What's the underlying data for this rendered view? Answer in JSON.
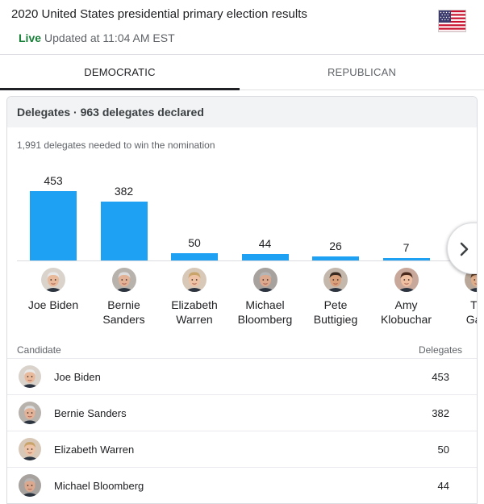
{
  "header": {
    "title": "2020 United States presidential primary election results",
    "live_label": "Live",
    "updated_text": "Updated at 11:04 AM EST",
    "flag_icon": "us-flag-icon"
  },
  "tabs": [
    {
      "label": "DEMOCRATIC",
      "selected": true
    },
    {
      "label": "REPUBLICAN",
      "selected": false
    }
  ],
  "card": {
    "heading": "Delegates · 963 delegates declared",
    "needed_text": "1,991 delegates needed to win the nomination"
  },
  "colors": {
    "bar": "#1ea1f2",
    "live": "#188038"
  },
  "chart_data": {
    "type": "bar",
    "title": "Delegates",
    "categories": [
      "Joe Biden",
      "Bernie Sanders",
      "Elizabeth Warren",
      "Michael Bloomberg",
      "Pete Buttigieg",
      "Amy Klobuchar",
      "Tulsi Gabbard"
    ],
    "name_lines": [
      [
        "Joe Biden"
      ],
      [
        "Bernie",
        "Sanders"
      ],
      [
        "Elizabeth",
        "Warren"
      ],
      [
        "Michael",
        "Bloomberg"
      ],
      [
        "Pete",
        "Buttigieg"
      ],
      [
        "Amy",
        "Klobuchar"
      ],
      [
        "Tu",
        "Gab"
      ]
    ],
    "values": [
      453,
      382,
      50,
      44,
      26,
      7,
      null
    ],
    "value_labels": [
      "453",
      "382",
      "50",
      "44",
      "26",
      "7",
      ""
    ],
    "ylim": [
      0,
      453
    ]
  },
  "table": {
    "col_candidate": "Candidate",
    "col_delegates": "Delegates",
    "rows": [
      {
        "name": "Joe Biden",
        "delegates": "453"
      },
      {
        "name": "Bernie Sanders",
        "delegates": "382"
      },
      {
        "name": "Elizabeth Warren",
        "delegates": "50"
      },
      {
        "name": "Michael Bloomberg",
        "delegates": "44"
      }
    ]
  }
}
